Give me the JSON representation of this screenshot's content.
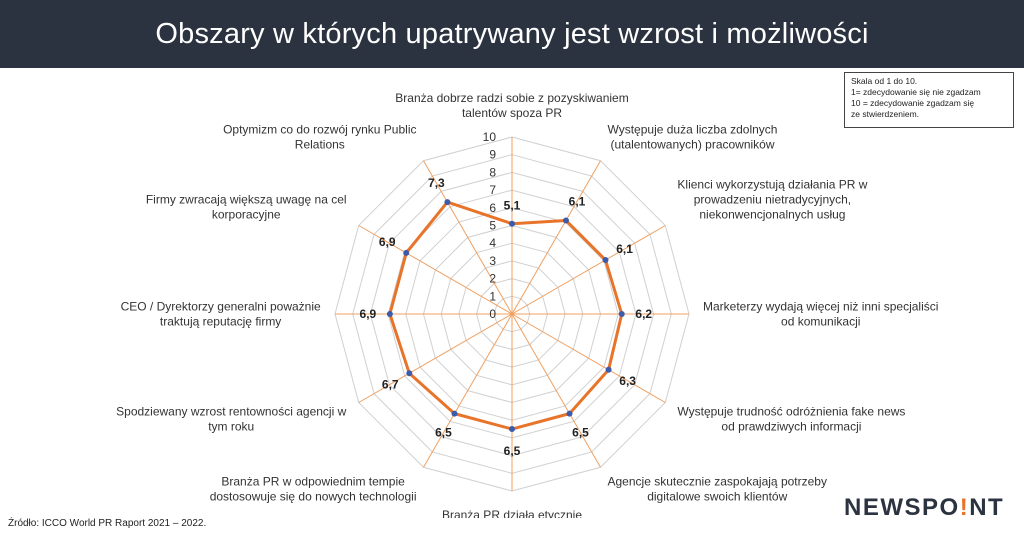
{
  "title": "Obszary w których upatrywany jest wzrost i możliwości",
  "scale_note": [
    "Skala od 1 do 10.",
    "1= zdecydowanie się nie zgadzam",
    "10 = zdecydowanie zgadzam się",
    "ze stwierdzeniem."
  ],
  "source": "Źródło: ICCO World PR Raport 2021 – 2022.",
  "logo": {
    "text_before": "NEWSPO",
    "dot_letter": "!",
    "text_after": "NT"
  },
  "colors": {
    "header_bg": "#2b3240",
    "series_line": "#e8742a",
    "series_marker": "#3b5bab",
    "grid": "#d0d0d0",
    "spoke": "#f0a060"
  },
  "chart_data": {
    "type": "radar",
    "title": "",
    "rlim": [
      0,
      10
    ],
    "ticks": [
      0,
      1,
      2,
      3,
      4,
      5,
      6,
      7,
      8,
      9,
      10
    ],
    "grid": true,
    "categories": [
      [
        "Branża dobrze radzi sobie z pozyskiwaniem",
        "talentów spoza PR"
      ],
      [
        "Występuje duża liczba zdolnych",
        "(utalentowanych) pracowników"
      ],
      [
        "Klienci wykorzystują działania PR w",
        "prowadzeniu nietradycyjnych,",
        "niekonwencjonalnych usług"
      ],
      [
        "Marketerzy wydają więcej niż inni specjaliści",
        "od komunikacji"
      ],
      [
        "Występuje trudność odróżnienia fake news",
        "od prawdziwych informacji"
      ],
      [
        "Agencje skutecznie zaspokajają potrzeby",
        "digitalowe swoich klientów"
      ],
      [
        "Branża PR działa etycznie"
      ],
      [
        "Branża PR w odpowiednim tempie",
        "dostosowuje się do nowych technologii"
      ],
      [
        "Spodziewany wzrost rentowności agencji w",
        "tym roku"
      ],
      [
        "CEO / Dyrektorzy generalni poważnie",
        "traktują reputację firmy"
      ],
      [
        "Firmy zwracają większą uwagę na cel",
        "korporacyjne"
      ],
      [
        "Optymizm co do rozwój rynku Public",
        "Relations"
      ]
    ],
    "values": [
      5.1,
      6.1,
      6.1,
      6.2,
      6.3,
      6.5,
      6.5,
      6.5,
      6.7,
      6.9,
      6.9,
      7.3
    ],
    "value_labels": [
      "5,1",
      "6,1",
      "6,1",
      "6,2",
      "6,3",
      "6,5",
      "6,5",
      "6,5",
      "6,7",
      "6,9",
      "6,9",
      "7,3"
    ]
  }
}
